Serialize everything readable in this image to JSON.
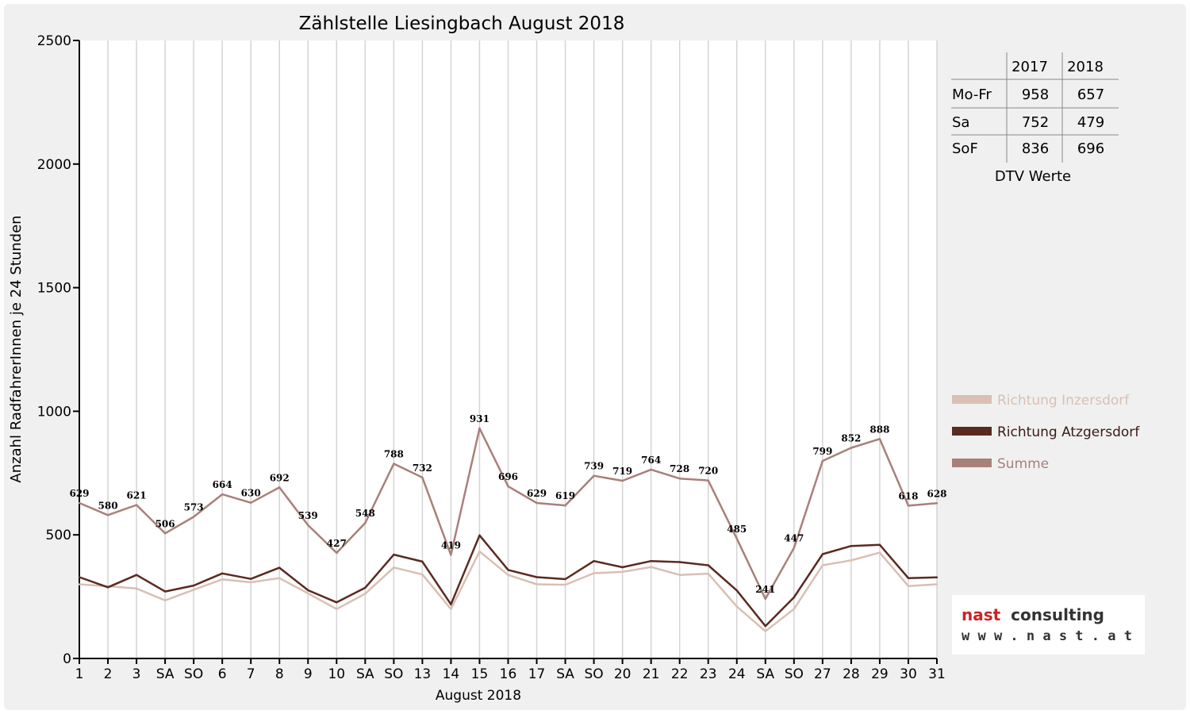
{
  "chart_data": {
    "type": "line",
    "title": "Zählstelle Liesingbach August 2018",
    "xlabel": "August 2018",
    "ylabel": "Anzahl RadfahrerInnen je 24 Stunden",
    "ylim": [
      0,
      2500
    ],
    "yticks": [
      0,
      500,
      1000,
      1500,
      2000,
      2500
    ],
    "grid": "vertical",
    "legend_position": "right",
    "categories": [
      "1",
      "2",
      "3",
      "SA",
      "SO",
      "6",
      "7",
      "8",
      "9",
      "10",
      "SA",
      "SO",
      "13",
      "14",
      "15",
      "16",
      "17",
      "SA",
      "SO",
      "20",
      "21",
      "22",
      "23",
      "24",
      "SA",
      "SO",
      "27",
      "28",
      "29",
      "30",
      "31"
    ],
    "highlight_categories": [
      4,
      11,
      14,
      18,
      25
    ],
    "highlight_color": "#ff0000",
    "series": [
      {
        "name": "Richtung Inzersdorf",
        "color": "#d9bfb4",
        "values": [
          300,
          292,
          283,
          235,
          278,
          320,
          308,
          325,
          263,
          200,
          262,
          368,
          340,
          200,
          433,
          338,
          300,
          298,
          345,
          350,
          370,
          338,
          343,
          210,
          110,
          200,
          377,
          397,
          428,
          293,
          300
        ]
      },
      {
        "name": "Richtung Atzgersdorf",
        "color": "#5a2a20",
        "values": [
          329,
          288,
          338,
          271,
          295,
          344,
          322,
          367,
          276,
          227,
          286,
          420,
          392,
          219,
          498,
          358,
          329,
          321,
          394,
          369,
          394,
          390,
          377,
          275,
          131,
          247,
          422,
          455,
          460,
          325,
          328
        ]
      },
      {
        "name": "Summe",
        "color": "#a8807a",
        "values": [
          629,
          580,
          621,
          506,
          573,
          664,
          630,
          692,
          539,
          427,
          548,
          788,
          732,
          419,
          931,
          696,
          629,
          619,
          739,
          719,
          764,
          728,
          720,
          485,
          241,
          447,
          799,
          852,
          888,
          618,
          628
        ]
      }
    ],
    "data_labels": [
      "629",
      "580",
      "621",
      "506",
      "573",
      "664",
      "630",
      "692",
      "539",
      "427",
      "548",
      "788",
      "732",
      "419",
      "931",
      "696",
      "629",
      "619",
      "739",
      "719",
      "764",
      "728",
      "720",
      "485",
      "241",
      "447",
      "799",
      "852",
      "888",
      "618",
      "628"
    ]
  },
  "dtv_table": {
    "header": [
      "",
      "2017",
      "2018"
    ],
    "rows": [
      [
        "Mo-Fr",
        "958",
        "657"
      ],
      [
        "Sa",
        "752",
        "479"
      ],
      [
        "SoF",
        "836",
        "696"
      ]
    ],
    "caption": "DTV Werte"
  },
  "logo": {
    "name_part1": "nast",
    "name_part2": "consulting",
    "url": "w w w . n a s t . a t",
    "color1": "#cc2222",
    "color2": "#333333"
  }
}
